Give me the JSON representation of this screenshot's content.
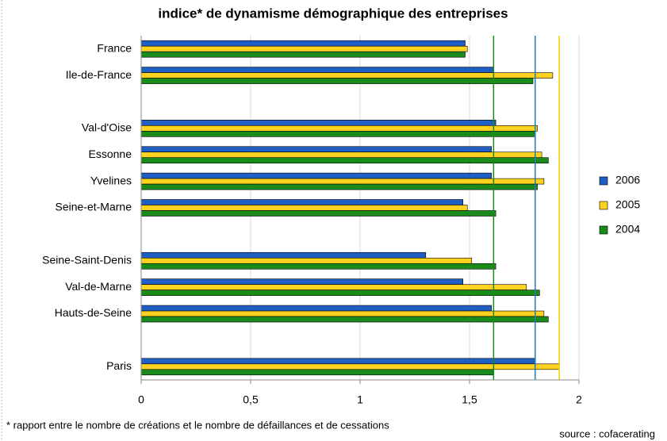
{
  "chart_data": {
    "type": "hbar",
    "title": "indice* de dynamisme démographique des entreprises",
    "categories": [
      "France",
      "Ile-de-France",
      null,
      "Val-d'Oise",
      "Essonne",
      "Yvelines",
      "Seine-et-Marne",
      null,
      "Seine-Saint-Denis",
      "Val-de-Marne",
      "Hauts-de-Seine",
      null,
      "Paris"
    ],
    "series": [
      {
        "name": "2006",
        "color": "#1f5fc4",
        "values": [
          1.48,
          1.61,
          null,
          1.62,
          1.6,
          1.6,
          1.47,
          null,
          1.3,
          1.47,
          1.6,
          null,
          1.8
        ]
      },
      {
        "name": "2005",
        "color": "#ffd21f",
        "values": [
          1.49,
          1.88,
          null,
          1.81,
          1.83,
          1.84,
          1.49,
          null,
          1.51,
          1.76,
          1.84,
          null,
          1.91
        ]
      },
      {
        "name": "2004",
        "color": "#1a8a1a",
        "values": [
          1.48,
          1.79,
          null,
          1.8,
          1.86,
          1.81,
          1.62,
          null,
          1.62,
          1.82,
          1.86,
          null,
          1.61
        ]
      }
    ],
    "reference_lines": [
      {
        "value": 1.61,
        "color": "#1a8a1a"
      },
      {
        "value": 1.8,
        "color": "#1f7fb0"
      },
      {
        "value": 1.91,
        "color": "#f0d000"
      }
    ],
    "xlim": [
      0,
      2
    ],
    "xticks": [
      0,
      {
        "value": 0.5,
        "label": "0,5"
      },
      1,
      {
        "value": 1.5,
        "label": "1,5"
      },
      2
    ],
    "grid": true,
    "legend": "right",
    "footnote": "* rapport entre le nombre de créations et le nombre de défaillances et de cessations",
    "source": "source : cofacerating"
  }
}
